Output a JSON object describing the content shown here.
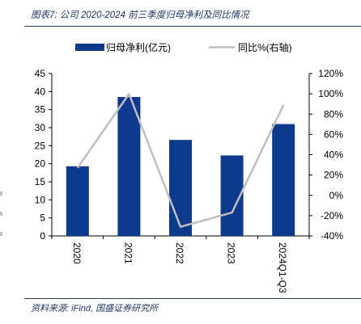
{
  "header": {
    "title": "图表7: 公司 2020-2024 前三季度归母净利及同比情况"
  },
  "footer": {
    "source": "资料来源: iFind, 国盛证券研究所"
  },
  "colors": {
    "bar": "#0d3a8c",
    "line": "#bfbfbf",
    "rule": "#1f3864"
  },
  "chart_data": {
    "type": "bar",
    "categories": [
      "2020",
      "2021",
      "2022",
      "2023",
      "2024Q1-Q3"
    ],
    "series": [
      {
        "name": "归母净利(亿元)",
        "type": "bar",
        "axis": "left",
        "values": [
          19.3,
          38.5,
          26.6,
          22.3,
          31.0
        ]
      },
      {
        "name": "同比%(右轴)",
        "type": "line",
        "axis": "right",
        "values": [
          27,
          100,
          -31,
          -17,
          89
        ]
      }
    ],
    "y_left": {
      "min": 0,
      "max": 45,
      "ticks": [
        "0",
        "5",
        "10",
        "15",
        "20",
        "25",
        "30",
        "35",
        "40",
        "45"
      ]
    },
    "y_right": {
      "min": -40,
      "max": 120,
      "ticks": [
        "-40%",
        "-20%",
        "0%",
        "20%",
        "40%",
        "60%",
        "80%",
        "100%",
        "120%"
      ]
    },
    "legend": {
      "position": "top",
      "bar_label": "归母净利(亿元)",
      "line_label": "同比%(右轴)"
    },
    "grid": false
  }
}
